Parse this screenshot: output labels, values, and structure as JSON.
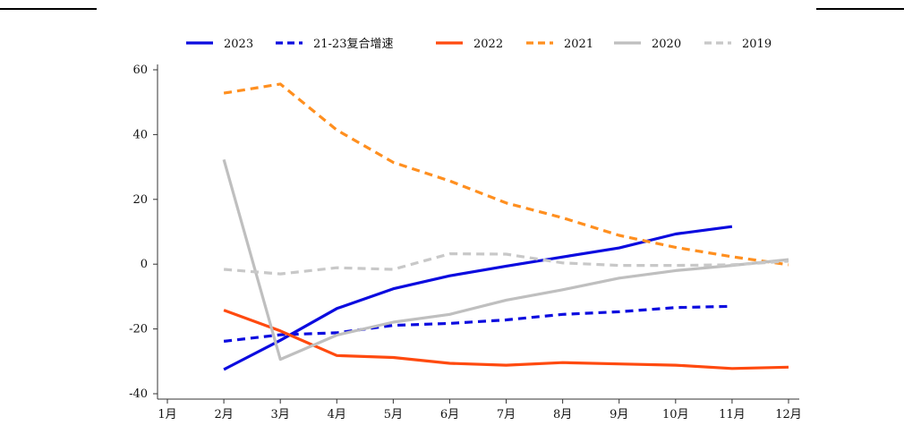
{
  "chart_data": {
    "type": "line",
    "title": "",
    "xlabel": "",
    "ylabel": "",
    "categories": [
      "1月",
      "2月",
      "3月",
      "4月",
      "5月",
      "6月",
      "7月",
      "8月",
      "9月",
      "10月",
      "11月",
      "12月"
    ],
    "ylim": [
      -40,
      60
    ],
    "yticks": [
      -40,
      -20,
      0,
      20,
      40,
      60
    ],
    "grid": false,
    "legend_position": "top",
    "series": [
      {
        "name": "2023",
        "color": "#0b0bdf",
        "dash": "solid",
        "values": [
          null,
          -32.5,
          -23.5,
          -13.7,
          -7.6,
          -3.6,
          -0.6,
          2.2,
          5.0,
          9.3,
          11.6,
          null
        ]
      },
      {
        "name": "21-23复合增速",
        "color": "#0b0bdf",
        "dash": "dashed",
        "values": [
          null,
          -23.8,
          -21.8,
          -21.2,
          -18.9,
          -18.3,
          -17.2,
          -15.5,
          -14.7,
          -13.4,
          -13.0,
          null
        ]
      },
      {
        "name": "2022",
        "color": "#ff4a0f",
        "dash": "solid",
        "values": [
          null,
          -14.2,
          -20.6,
          -28.2,
          -28.8,
          -30.6,
          -31.2,
          -30.4,
          -30.8,
          -31.2,
          -32.2,
          -31.8
        ]
      },
      {
        "name": "2021",
        "color": "#ff8f1f",
        "dash": "dashed",
        "values": [
          null,
          52.8,
          55.6,
          41.4,
          31.4,
          25.7,
          18.9,
          14.3,
          8.9,
          5.2,
          2.3,
          -0.2
        ]
      },
      {
        "name": "2020",
        "color": "#bfbfbf",
        "dash": "solid",
        "values": [
          null,
          32.3,
          -29.4,
          -21.9,
          -17.9,
          -15.5,
          -11.1,
          -7.9,
          -4.3,
          -2.0,
          -0.4,
          1.4
        ]
      },
      {
        "name": "2019",
        "color": "#c8c8c8",
        "dash": "dashed",
        "values": [
          null,
          -1.6,
          -3.0,
          -1.1,
          -1.6,
          3.2,
          3.1,
          0.4,
          -0.4,
          -0.4,
          -0.2,
          0.9
        ]
      }
    ]
  }
}
